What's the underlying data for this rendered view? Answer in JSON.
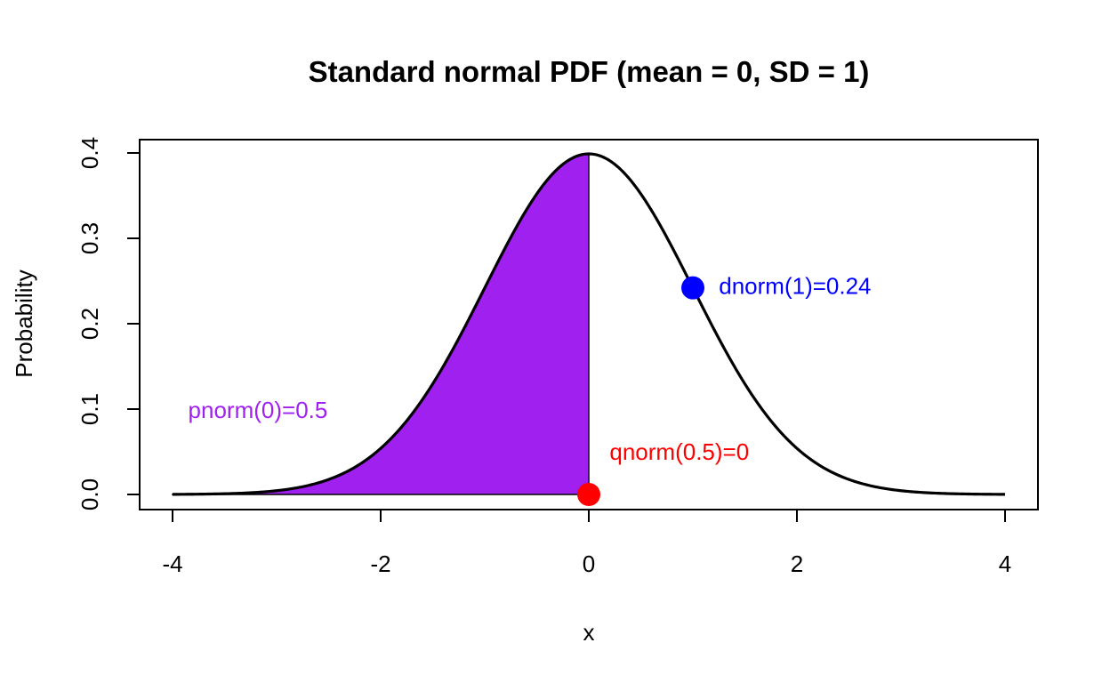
{
  "chart_data": {
    "type": "line",
    "title": "Standard normal PDF (mean = 0, SD = 1)",
    "xlabel": "x",
    "ylabel": "Probability",
    "xlim": [
      -4,
      4
    ],
    "ylim": [
      0,
      0.4
    ],
    "x_ticks": [
      -4,
      -2,
      0,
      2,
      4
    ],
    "x_tick_labels": [
      "-4",
      "-2",
      "0",
      "2",
      "4"
    ],
    "y_ticks": [
      0.0,
      0.1,
      0.2,
      0.3,
      0.4
    ],
    "y_tick_labels": [
      "0.0",
      "0.1",
      "0.2",
      "0.3",
      "0.4"
    ],
    "grid": false,
    "curve": {
      "function": "standard normal density",
      "mean": 0,
      "sd": 1,
      "x_from": -4,
      "x_to": 4,
      "color": "#000000"
    },
    "shaded_area": {
      "x_from": -4,
      "x_to": 0,
      "color": "#A020F0"
    },
    "points": [
      {
        "x": 1,
        "y": 0.242,
        "color": "#0000FF"
      },
      {
        "x": 0,
        "y": 0,
        "color": "#FF0000"
      }
    ],
    "annotations": [
      {
        "text": "dnorm(1)=0.24",
        "x": 1.25,
        "y": 0.242,
        "anchor": "start",
        "color": "#0000FF"
      },
      {
        "text": "pnorm(0)=0.5",
        "x": -3.85,
        "y": 0.097,
        "anchor": "start",
        "color": "#A020F0"
      },
      {
        "text": "qnorm(0.5)=0",
        "x": 0.2,
        "y": 0.048,
        "anchor": "start",
        "color": "#FF0000"
      }
    ]
  }
}
